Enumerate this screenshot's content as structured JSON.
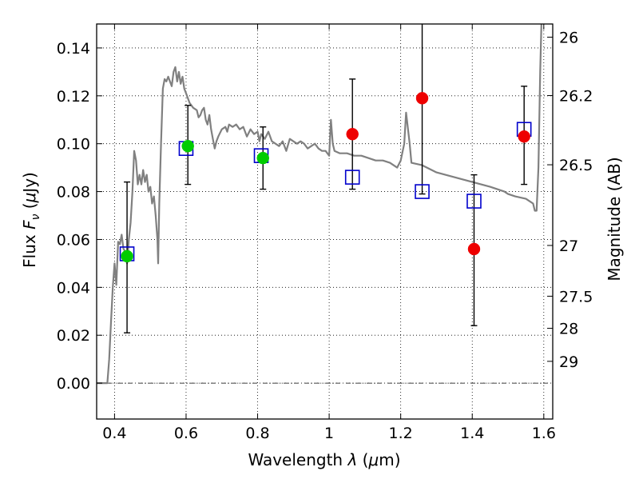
{
  "chart_data": {
    "type": "scatter",
    "xlabel_prefix": "Wavelength ",
    "xlabel_math": "λ",
    "xlabel_suffix": " (",
    "xlabel_unit_math": "μ",
    "xlabel_unit": "m)",
    "ylabel_prefix": "Flux ",
    "ylabel_math": "F",
    "ylabel_math_sub": "ν",
    "ylabel_mid": " (",
    "ylabel_unit_math": "μ",
    "ylabel_unit": "Jy)",
    "y2label": "Magnitude (AB)",
    "xlim": [
      0.35,
      1.625
    ],
    "ylim": [
      -0.015,
      0.15
    ],
    "x_ticks": [
      0.4,
      0.6,
      0.8,
      1.0,
      1.2,
      1.4,
      1.6
    ],
    "x_tick_labels": [
      "0.4",
      "0.6",
      "0.8",
      "1",
      "1.2",
      "1.4",
      "1.6"
    ],
    "y_ticks": [
      0.0,
      0.02,
      0.04,
      0.06,
      0.08,
      0.1,
      0.12,
      0.14
    ],
    "y_tick_labels": [
      "0.00",
      "0.02",
      "0.04",
      "0.06",
      "0.08",
      "0.10",
      "0.12",
      "0.14"
    ],
    "y2_ticks": [
      {
        "flux": 0.1445,
        "label": "26"
      },
      {
        "flux": 0.1201,
        "label": "26.2"
      },
      {
        "flux": 0.0912,
        "label": "26.5"
      },
      {
        "flux": 0.0575,
        "label": "27"
      },
      {
        "flux": 0.0363,
        "label": "27.5"
      },
      {
        "flux": 0.0229,
        "label": "28"
      },
      {
        "flux": 0.0091,
        "label": "29"
      }
    ],
    "grid": true,
    "zero_line": true,
    "series": [
      {
        "kind": "model",
        "color": "#808080",
        "points": [
          [
            0.35,
            0.0
          ],
          [
            0.38,
            0.0
          ],
          [
            0.385,
            0.01
          ],
          [
            0.39,
            0.025
          ],
          [
            0.395,
            0.04
          ],
          [
            0.4,
            0.05
          ],
          [
            0.405,
            0.041
          ],
          [
            0.41,
            0.059
          ],
          [
            0.415,
            0.058
          ],
          [
            0.42,
            0.062
          ],
          [
            0.425,
            0.056
          ],
          [
            0.43,
            0.055
          ],
          [
            0.435,
            0.05
          ],
          [
            0.44,
            0.06
          ],
          [
            0.445,
            0.067
          ],
          [
            0.45,
            0.08
          ],
          [
            0.455,
            0.097
          ],
          [
            0.46,
            0.093
          ],
          [
            0.465,
            0.083
          ],
          [
            0.47,
            0.087
          ],
          [
            0.475,
            0.083
          ],
          [
            0.48,
            0.089
          ],
          [
            0.485,
            0.084
          ],
          [
            0.49,
            0.087
          ],
          [
            0.495,
            0.08
          ],
          [
            0.5,
            0.082
          ],
          [
            0.505,
            0.075
          ],
          [
            0.51,
            0.078
          ],
          [
            0.515,
            0.07
          ],
          [
            0.52,
            0.06
          ],
          [
            0.522,
            0.05
          ],
          [
            0.525,
            0.075
          ],
          [
            0.53,
            0.1
          ],
          [
            0.535,
            0.123
          ],
          [
            0.54,
            0.127
          ],
          [
            0.545,
            0.126
          ],
          [
            0.55,
            0.128
          ],
          [
            0.555,
            0.126
          ],
          [
            0.56,
            0.124
          ],
          [
            0.565,
            0.13
          ],
          [
            0.57,
            0.132
          ],
          [
            0.575,
            0.126
          ],
          [
            0.58,
            0.13
          ],
          [
            0.585,
            0.125
          ],
          [
            0.59,
            0.128
          ],
          [
            0.595,
            0.123
          ],
          [
            0.6,
            0.121
          ],
          [
            0.61,
            0.117
          ],
          [
            0.62,
            0.115
          ],
          [
            0.63,
            0.114
          ],
          [
            0.635,
            0.111
          ],
          [
            0.64,
            0.112
          ],
          [
            0.645,
            0.114
          ],
          [
            0.65,
            0.115
          ],
          [
            0.655,
            0.11
          ],
          [
            0.66,
            0.108
          ],
          [
            0.665,
            0.112
          ],
          [
            0.67,
            0.106
          ],
          [
            0.675,
            0.102
          ],
          [
            0.68,
            0.098
          ],
          [
            0.685,
            0.101
          ],
          [
            0.69,
            0.103
          ],
          [
            0.7,
            0.106
          ],
          [
            0.71,
            0.107
          ],
          [
            0.715,
            0.105
          ],
          [
            0.72,
            0.108
          ],
          [
            0.73,
            0.107
          ],
          [
            0.74,
            0.108
          ],
          [
            0.75,
            0.106
          ],
          [
            0.76,
            0.107
          ],
          [
            0.77,
            0.103
          ],
          [
            0.78,
            0.106
          ],
          [
            0.79,
            0.104
          ],
          [
            0.8,
            0.105
          ],
          [
            0.805,
            0.101
          ],
          [
            0.81,
            0.104
          ],
          [
            0.82,
            0.102
          ],
          [
            0.83,
            0.105
          ],
          [
            0.84,
            0.101
          ],
          [
            0.85,
            0.1
          ],
          [
            0.86,
            0.099
          ],
          [
            0.87,
            0.101
          ],
          [
            0.88,
            0.097
          ],
          [
            0.89,
            0.102
          ],
          [
            0.9,
            0.101
          ],
          [
            0.91,
            0.1
          ],
          [
            0.92,
            0.101
          ],
          [
            0.93,
            0.1
          ],
          [
            0.94,
            0.098
          ],
          [
            0.95,
            0.099
          ],
          [
            0.96,
            0.1
          ],
          [
            0.97,
            0.098
          ],
          [
            0.98,
            0.097
          ],
          [
            0.99,
            0.097
          ],
          [
            1.0,
            0.095
          ],
          [
            1.005,
            0.11
          ],
          [
            1.01,
            0.1
          ],
          [
            1.015,
            0.097
          ],
          [
            1.03,
            0.096
          ],
          [
            1.05,
            0.096
          ],
          [
            1.07,
            0.095
          ],
          [
            1.09,
            0.095
          ],
          [
            1.11,
            0.094
          ],
          [
            1.13,
            0.093
          ],
          [
            1.15,
            0.093
          ],
          [
            1.17,
            0.092
          ],
          [
            1.18,
            0.091
          ],
          [
            1.19,
            0.09
          ],
          [
            1.2,
            0.093
          ],
          [
            1.21,
            0.1
          ],
          [
            1.215,
            0.113
          ],
          [
            1.225,
            0.1
          ],
          [
            1.23,
            0.092
          ],
          [
            1.26,
            0.091
          ],
          [
            1.3,
            0.088
          ],
          [
            1.35,
            0.086
          ],
          [
            1.4,
            0.084
          ],
          [
            1.45,
            0.082
          ],
          [
            1.47,
            0.081
          ],
          [
            1.49,
            0.08
          ],
          [
            1.5,
            0.079
          ],
          [
            1.52,
            0.078
          ],
          [
            1.55,
            0.077
          ],
          [
            1.57,
            0.075
          ],
          [
            1.575,
            0.072
          ],
          [
            1.58,
            0.072
          ],
          [
            1.585,
            0.09
          ],
          [
            1.59,
            0.13
          ],
          [
            1.595,
            0.16
          ],
          [
            1.6,
            0.18
          ]
        ]
      },
      {
        "kind": "observed-green",
        "color": "#00cc00",
        "points": [
          {
            "x": 0.435,
            "y": 0.053,
            "yerr": [
              0.021,
              0.084
            ]
          },
          {
            "x": 0.605,
            "y": 0.099,
            "yerr": [
              0.083,
              0.116
            ]
          },
          {
            "x": 0.815,
            "y": 0.094,
            "yerr": [
              0.081,
              0.107
            ]
          }
        ]
      },
      {
        "kind": "observed-red",
        "color": "#ee0000",
        "points": [
          {
            "x": 1.065,
            "y": 0.104,
            "yerr": [
              0.081,
              0.127
            ]
          },
          {
            "x": 1.26,
            "y": 0.119,
            "yerr": [
              0.079,
              0.16
            ]
          },
          {
            "x": 1.405,
            "y": 0.056,
            "yerr": [
              0.024,
              0.087
            ]
          },
          {
            "x": 1.545,
            "y": 0.103,
            "yerr": [
              0.083,
              0.124
            ]
          }
        ]
      },
      {
        "kind": "model-bands",
        "color": "#0000cc",
        "points": [
          {
            "x": 0.435,
            "y": 0.054
          },
          {
            "x": 0.6,
            "y": 0.098
          },
          {
            "x": 0.81,
            "y": 0.095
          },
          {
            "x": 1.065,
            "y": 0.086
          },
          {
            "x": 1.26,
            "y": 0.08
          },
          {
            "x": 1.405,
            "y": 0.076
          },
          {
            "x": 1.545,
            "y": 0.106
          }
        ]
      }
    ]
  }
}
